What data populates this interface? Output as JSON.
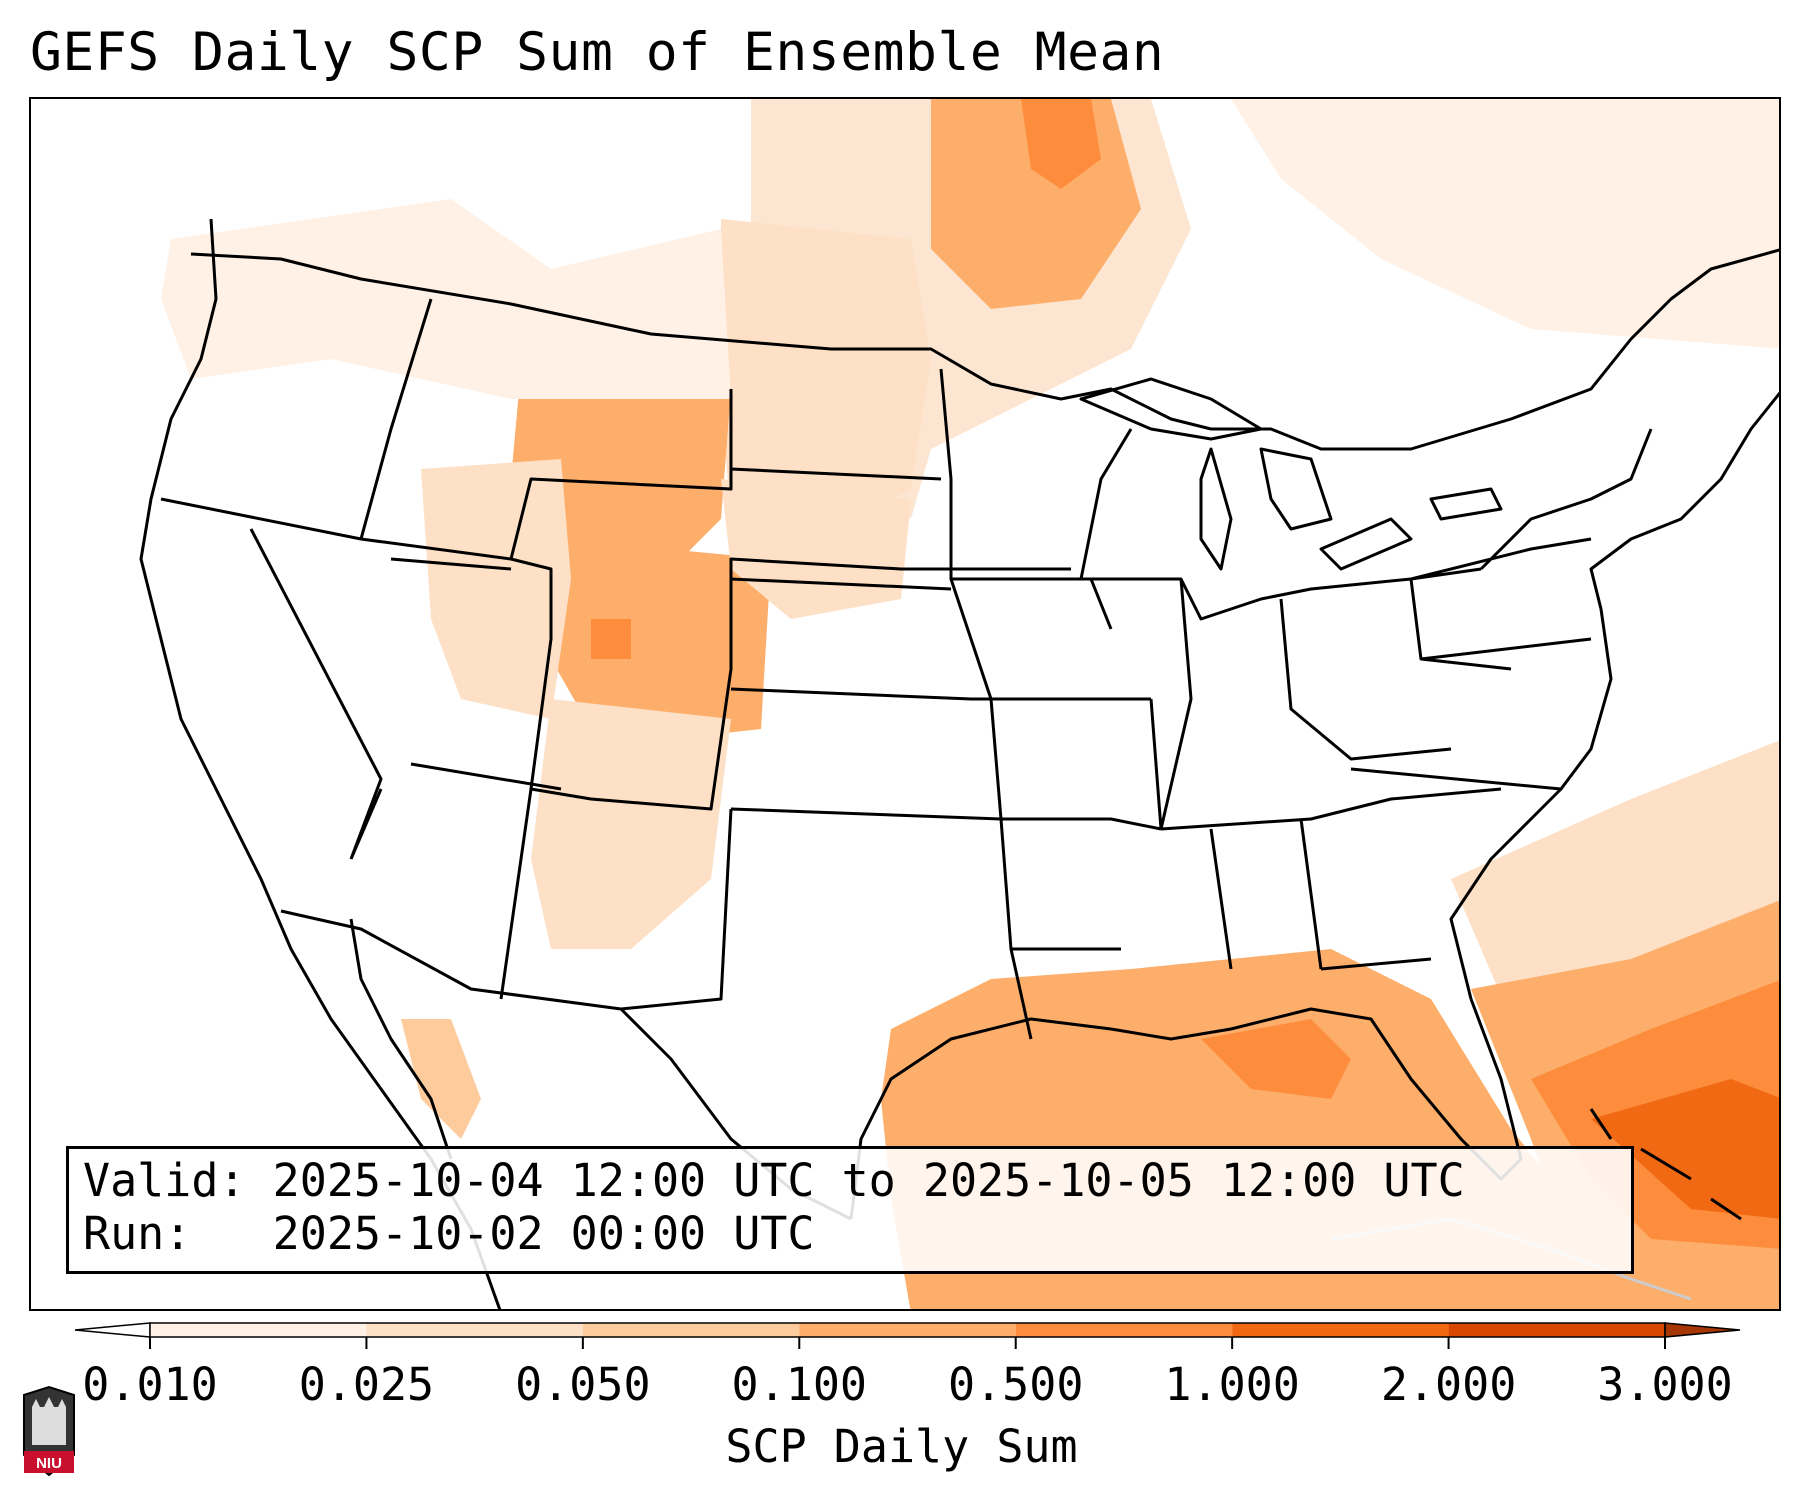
{
  "title": "GEFS Daily SCP Sum of Ensemble Mean",
  "info": {
    "valid_line": "Valid: 2025-10-04 12:00 UTC to 2025-10-05 12:00 UTC",
    "run_line": "Run:   2025-10-02 00:00 UTC"
  },
  "colorbar": {
    "label": "SCP Daily Sum",
    "ticks": [
      "0.010",
      "0.025",
      "0.050",
      "0.100",
      "0.500",
      "1.000",
      "2.000",
      "3.000"
    ],
    "colors": [
      "#fff1e6",
      "#fde0c6",
      "#fdcb9c",
      "#fdae6b",
      "#fd8d3c",
      "#f16913",
      "#d94801"
    ],
    "extend_low_color": "#ffffff",
    "extend_high_color": "#a63603"
  },
  "logo": {
    "text": "NIU"
  },
  "map": {
    "projection": "lambert-conformal",
    "region": "CONUS",
    "boundaries": [
      "coastlines",
      "state-borders",
      "country-borders"
    ]
  }
}
